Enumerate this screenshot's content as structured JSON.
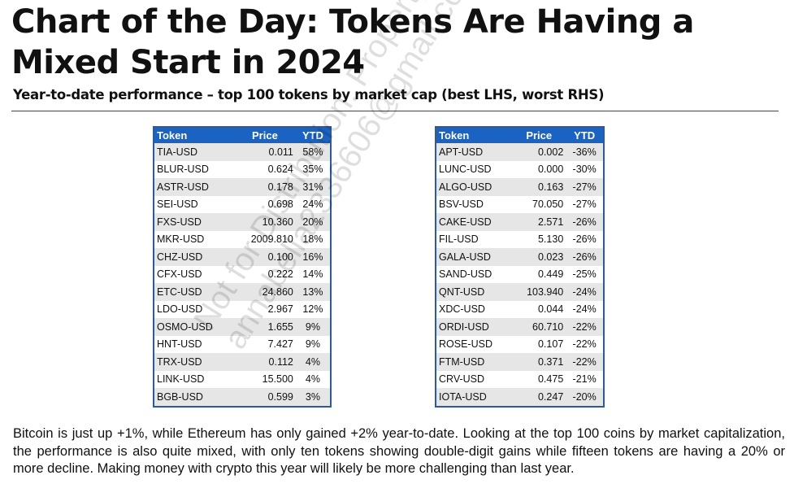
{
  "title": "Chart of the Day: Tokens Are Having a Mixed Start in 2024",
  "subtitle": "Year-to-date performance – top 100 tokens by market cap (best LHS, worst RHS)",
  "headers": [
    "Token",
    "Price",
    "YTD"
  ],
  "best": [
    [
      "TIA-USD",
      "0.011",
      "58%"
    ],
    [
      "BLUR-USD",
      "0.624",
      "35%"
    ],
    [
      "ASTR-USD",
      "0.178",
      "31%"
    ],
    [
      "SEI-USD",
      "0.698",
      "24%"
    ],
    [
      "FXS-USD",
      "10.360",
      "20%"
    ],
    [
      "MKR-USD",
      "2009.810",
      "18%"
    ],
    [
      "CHZ-USD",
      "0.100",
      "16%"
    ],
    [
      "CFX-USD",
      "0.222",
      "14%"
    ],
    [
      "ETC-USD",
      "24.860",
      "13%"
    ],
    [
      "LDO-USD",
      "2.967",
      "12%"
    ],
    [
      "OSMO-USD",
      "1.655",
      "9%"
    ],
    [
      "HNT-USD",
      "7.427",
      "9%"
    ],
    [
      "TRX-USD",
      "0.112",
      "4%"
    ],
    [
      "LINK-USD",
      "15.500",
      "4%"
    ],
    [
      "BGB-USD",
      "0.599",
      "3%"
    ]
  ],
  "worst": [
    [
      "APT-USD",
      "0.002",
      "-36%"
    ],
    [
      "LUNC-USD",
      "0.000",
      "-30%"
    ],
    [
      "ALGO-USD",
      "0.163",
      "-27%"
    ],
    [
      "BSV-USD",
      "70.050",
      "-27%"
    ],
    [
      "CAKE-USD",
      "2.571",
      "-26%"
    ],
    [
      "FIL-USD",
      "5.130",
      "-26%"
    ],
    [
      "GALA-USD",
      "0.023",
      "-26%"
    ],
    [
      "SAND-USD",
      "0.449",
      "-25%"
    ],
    [
      "QNT-USD",
      "103.940",
      "-24%"
    ],
    [
      "XDC-USD",
      "0.044",
      "-24%"
    ],
    [
      "ORDI-USD",
      "60.710",
      "-22%"
    ],
    [
      "ROSE-USD",
      "0.107",
      "-22%"
    ],
    [
      "FTM-USD",
      "0.371",
      "-22%"
    ],
    [
      "CRV-USD",
      "0.475",
      "-21%"
    ],
    [
      "IOTA-USD",
      "0.247",
      "-20%"
    ]
  ],
  "paragraph": "Bitcoin is just up +1%, while Ethereum has only gained +2% year-to-date. Looking at the top 100 coins by market capitalization, the performance is also quite mixed, with only ten tokens showing double-digit gains while fifteen tokens are having a 20% or more decline. Making money with crypto this year will likely be more challenging than last year.",
  "watermark": [
    "Not for Distribution. Property of",
    "annabella2336606@gmail.com"
  ]
}
